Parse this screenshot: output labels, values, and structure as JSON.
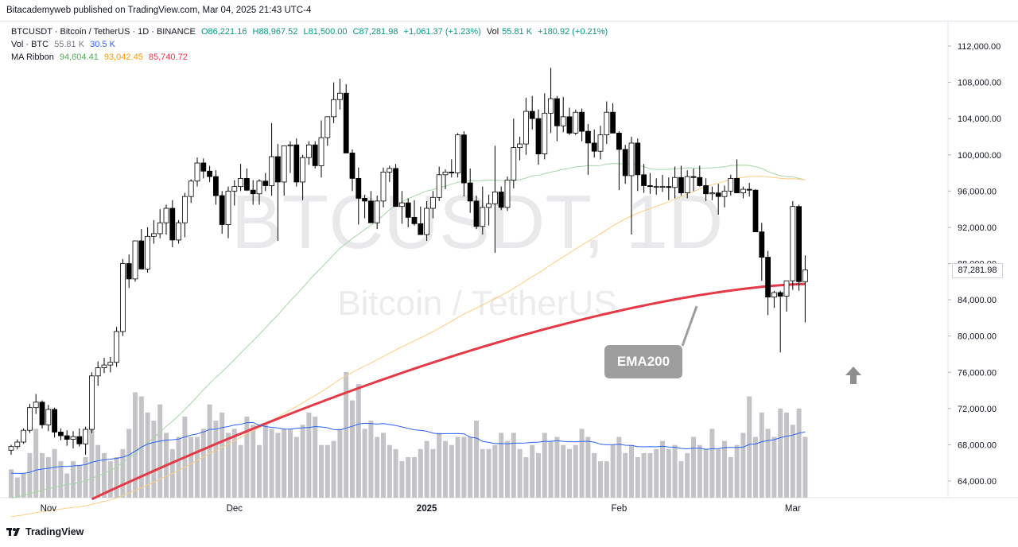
{
  "header": {
    "published": "Bitacademyweb published on TradingView.com, Mar 04, 2025 21:43 UTC-4"
  },
  "legend": {
    "symbol": "BTCUSDT · Bitcoin / TetherUS · 1D · BINANCE",
    "open": "O86,221.16",
    "high": "H88,967.52",
    "low": "L81,500.00",
    "close": "C87,281.98",
    "change": "+1,061.37 (+1.23%)",
    "vol_label": "Vol",
    "vol_value": "55.81 K",
    "vol_change": "+180.92 (+0.21%)",
    "vol_row_label": "Vol · BTC",
    "vol_row_v1": "55.81 K",
    "vol_row_v2": "30.5 K",
    "ma_label": "MA Ribbon",
    "ma_v1": "94,604.41",
    "ma_v2": "93,042.45",
    "ma_v3": "85,740.72"
  },
  "watermark": {
    "symbol": "BTCUSDT, 1D",
    "name": "Bitcoin / TetherUS"
  },
  "annotation": {
    "text": "EMA200"
  },
  "price_tag": "87,281.98",
  "footer": {
    "brand": "TradingView"
  },
  "colors": {
    "up": "#ffffff",
    "down": "#000000",
    "ema200": "#e53946",
    "ma50": "#a5d6a7",
    "ma100": "#ffcc80",
    "vol_ma": "#2962ff",
    "volume": "#c4c4c8"
  },
  "chart_data": {
    "type": "candlestick",
    "ylim": [
      62000,
      114000
    ],
    "y_ticks": [
      "64,000.00",
      "68,000.00",
      "72,000.00",
      "76,000.00",
      "80,000.00",
      "84,000.00",
      "88,000.00",
      "92,000.00",
      "96,000.00",
      "100,000.00",
      "104,000.00",
      "108,000.00",
      "112,000.00"
    ],
    "x_ticks": [
      {
        "label": "Nov",
        "index": 6
      },
      {
        "label": "Dec",
        "index": 36
      },
      {
        "label": "2025",
        "index": 67
      },
      {
        "label": "Feb",
        "index": 98
      },
      {
        "label": "Mar",
        "index": 126
      }
    ],
    "candles": [
      [
        67400,
        68000,
        66900,
        67800
      ],
      [
        67800,
        68600,
        67500,
        68300
      ],
      [
        68300,
        69800,
        68100,
        69600
      ],
      [
        69600,
        72500,
        69300,
        72100
      ],
      [
        72100,
        73600,
        71400,
        72700
      ],
      [
        72700,
        72900,
        69800,
        70200
      ],
      [
        70200,
        72400,
        69500,
        71900
      ],
      [
        71900,
        72100,
        68800,
        69400
      ],
      [
        69400,
        69800,
        68500,
        69000
      ],
      [
        69000,
        69600,
        67900,
        68600
      ],
      [
        68600,
        69500,
        67600,
        68900
      ],
      [
        68900,
        69800,
        67800,
        68100
      ],
      [
        68100,
        70000,
        66900,
        69700
      ],
      [
        69700,
        76000,
        69300,
        75600
      ],
      [
        75600,
        77200,
        74500,
        76500
      ],
      [
        76500,
        77600,
        75900,
        76800
      ],
      [
        76800,
        77700,
        76000,
        77100
      ],
      [
        77100,
        81000,
        76600,
        80500
      ],
      [
        80500,
        88500,
        80000,
        88000
      ],
      [
        88000,
        89000,
        85300,
        86300
      ],
      [
        86300,
        90500,
        86000,
        90500
      ],
      [
        90500,
        91800,
        87700,
        87400
      ],
      [
        87400,
        92000,
        87000,
        91000
      ],
      [
        91000,
        92800,
        90200,
        91300
      ],
      [
        91300,
        94000,
        90800,
        92500
      ],
      [
        92500,
        94500,
        91200,
        94100
      ],
      [
        94100,
        95000,
        89800,
        90600
      ],
      [
        90600,
        92800,
        90200,
        92500
      ],
      [
        92500,
        95800,
        90900,
        95400
      ],
      [
        95400,
        97300,
        94700,
        97100
      ],
      [
        97100,
        99700,
        96500,
        99100
      ],
      [
        99100,
        99600,
        97400,
        98200
      ],
      [
        98200,
        98800,
        97000,
        97600
      ],
      [
        97600,
        98300,
        94500,
        95500
      ],
      [
        95500,
        96000,
        91300,
        92300
      ],
      [
        92300,
        96500,
        90800,
        96000
      ],
      [
        96000,
        97200,
        94400,
        96500
      ],
      [
        96500,
        99000,
        96000,
        97400
      ],
      [
        97400,
        98500,
        96000,
        96100
      ],
      [
        96100,
        97200,
        94500,
        95700
      ],
      [
        95700,
        97300,
        94500,
        97100
      ],
      [
        97100,
        98000,
        96000,
        96600
      ],
      [
        96600,
        103500,
        95500,
        99800
      ],
      [
        99800,
        101200,
        90500,
        97000
      ],
      [
        97000,
        101000,
        95500,
        101000
      ],
      [
        101000,
        101500,
        98000,
        101100
      ],
      [
        101100,
        101800,
        96500,
        97000
      ],
      [
        97000,
        100000,
        95000,
        99700
      ],
      [
        99700,
        101500,
        98900,
        101100
      ],
      [
        101100,
        101500,
        98500,
        98800
      ],
      [
        98800,
        103800,
        97500,
        101900
      ],
      [
        101900,
        104000,
        101000,
        104200
      ],
      [
        104200,
        108000,
        103500,
        106100
      ],
      [
        106100,
        108400,
        105000,
        106800
      ],
      [
        106800,
        107800,
        100500,
        100200
      ],
      [
        100200,
        100600,
        96000,
        97400
      ],
      [
        97400,
        98600,
        92300,
        95200
      ],
      [
        95200,
        95600,
        93000,
        94900
      ],
      [
        94900,
        96000,
        92800,
        92500
      ],
      [
        92500,
        95500,
        91800,
        94900
      ],
      [
        94900,
        98600,
        94200,
        98100
      ],
      [
        98100,
        98800,
        97000,
        98500
      ],
      [
        98500,
        99000,
        94400,
        94300
      ],
      [
        94300,
        96000,
        92400,
        94700
      ],
      [
        94700,
        95200,
        92000,
        93100
      ],
      [
        93100,
        95000,
        92200,
        92400
      ],
      [
        92400,
        94300,
        91300,
        91200
      ],
      [
        91200,
        94900,
        90500,
        94100
      ],
      [
        94100,
        96000,
        93000,
        95300
      ],
      [
        95300,
        98700,
        94900,
        97800
      ],
      [
        97800,
        98400,
        96200,
        98100
      ],
      [
        98100,
        99500,
        97500,
        98000
      ],
      [
        98000,
        102400,
        97500,
        102200
      ],
      [
        102200,
        102600,
        95400,
        96900
      ],
      [
        96900,
        98500,
        93600,
        94900
      ],
      [
        94900,
        95500,
        91800,
        92100
      ],
      [
        92100,
        96500,
        91200,
        94200
      ],
      [
        94200,
        95600,
        92200,
        94600
      ],
      [
        94600,
        101000,
        89200,
        95900
      ],
      [
        95900,
        96500,
        93900,
        94200
      ],
      [
        94200,
        97600,
        93800,
        97200
      ],
      [
        97200,
        104000,
        96300,
        100800
      ],
      [
        100800,
        102000,
        99400,
        101200
      ],
      [
        101200,
        106300,
        100000,
        104800
      ],
      [
        104800,
        106500,
        102800,
        104000
      ],
      [
        104000,
        105000,
        98900,
        100100
      ],
      [
        100100,
        106800,
        99500,
        104600
      ],
      [
        104600,
        109600,
        102400,
        106200
      ],
      [
        106200,
        106500,
        101500,
        103200
      ],
      [
        103200,
        106400,
        102500,
        104200
      ],
      [
        104200,
        105200,
        102200,
        102400
      ],
      [
        102400,
        105000,
        102200,
        104700
      ],
      [
        104700,
        105100,
        101500,
        102600
      ],
      [
        102600,
        103400,
        97800,
        101300
      ],
      [
        101300,
        102800,
        99700,
        100400
      ],
      [
        100400,
        103200,
        99500,
        102200
      ],
      [
        102200,
        105900,
        101200,
        104700
      ],
      [
        104700,
        105700,
        102600,
        102400
      ],
      [
        102400,
        102600,
        96100,
        100600
      ],
      [
        100600,
        101100,
        96800,
        97700
      ],
      [
        97700,
        102000,
        91200,
        101300
      ],
      [
        101300,
        101800,
        96000,
        97800
      ],
      [
        97800,
        99000,
        95800,
        96600
      ],
      [
        96600,
        98000,
        95700,
        96500
      ],
      [
        96500,
        97400,
        95600,
        96500
      ],
      [
        96500,
        97800,
        95900,
        96500
      ],
      [
        96500,
        97500,
        95000,
        96400
      ],
      [
        96400,
        98700,
        95200,
        97500
      ],
      [
        97500,
        98800,
        95500,
        95800
      ],
      [
        95800,
        98300,
        95200,
        97600
      ],
      [
        97600,
        98500,
        96000,
        97500
      ],
      [
        97500,
        98800,
        96500,
        96600
      ],
      [
        96600,
        97400,
        94900,
        95700
      ],
      [
        95700,
        96500,
        95000,
        95800
      ],
      [
        95800,
        96800,
        93400,
        95400
      ],
      [
        95400,
        96600,
        94200,
        96000
      ],
      [
        96000,
        97800,
        95500,
        97400
      ],
      [
        97400,
        99500,
        95800,
        95800
      ],
      [
        95800,
        96500,
        95200,
        96200
      ],
      [
        96200,
        96900,
        95400,
        96100
      ],
      [
        96100,
        96200,
        91500,
        91500
      ],
      [
        91500,
        92500,
        86100,
        88700
      ],
      [
        88700,
        89400,
        82300,
        84300
      ],
      [
        84300,
        85000,
        83100,
        84800
      ],
      [
        84800,
        85000,
        78200,
        84400
      ],
      [
        84400,
        86100,
        82700,
        86100
      ],
      [
        86100,
        94900,
        85100,
        94300
      ],
      [
        94300,
        94500,
        85000,
        86000
      ],
      [
        86000,
        88900,
        81500,
        87300
      ]
    ],
    "volume": [
      14,
      10,
      12,
      22,
      34,
      22,
      20,
      24,
      18,
      12,
      18,
      16,
      20,
      36,
      26,
      22,
      18,
      20,
      24,
      34,
      52,
      50,
      42,
      38,
      46,
      32,
      24,
      30,
      40,
      30,
      30,
      34,
      46,
      38,
      42,
      32,
      34,
      26,
      40,
      36,
      26,
      36,
      34,
      32,
      34,
      34,
      30,
      36,
      42,
      40,
      26,
      26,
      28,
      34,
      62,
      48,
      56,
      34,
      38,
      30,
      32,
      26,
      24,
      18,
      20,
      20,
      24,
      28,
      24,
      32,
      28,
      26,
      30,
      30,
      30,
      38,
      24,
      24,
      26,
      32,
      28,
      32,
      24,
      20,
      26,
      22,
      32,
      28,
      30,
      26,
      24,
      26,
      34,
      30,
      22,
      18,
      18,
      26,
      30,
      22,
      26,
      20,
      22,
      22,
      24,
      28,
      24,
      26,
      18,
      22,
      30,
      26,
      24,
      34,
      24,
      28,
      20,
      26,
      32,
      50,
      30,
      42,
      34,
      30,
      44,
      42,
      36,
      44,
      30
    ],
    "series": [
      {
        "name": "EMA200",
        "last": 85740.72
      },
      {
        "name": "MA Ribbon",
        "values": [
          94604.41,
          93042.45,
          85740.72
        ]
      },
      {
        "name": "Vol",
        "last": "55.81 K"
      }
    ]
  }
}
